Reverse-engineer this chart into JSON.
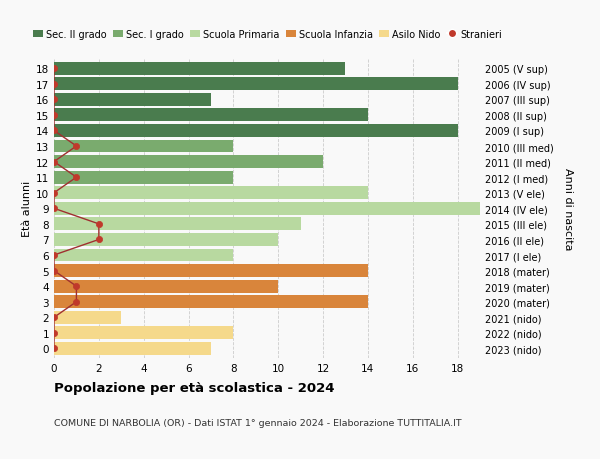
{
  "ages": [
    18,
    17,
    16,
    15,
    14,
    13,
    12,
    11,
    10,
    9,
    8,
    7,
    6,
    5,
    4,
    3,
    2,
    1,
    0
  ],
  "years": [
    "2005 (V sup)",
    "2006 (IV sup)",
    "2007 (III sup)",
    "2008 (II sup)",
    "2009 (I sup)",
    "2010 (III med)",
    "2011 (II med)",
    "2012 (I med)",
    "2013 (V ele)",
    "2014 (IV ele)",
    "2015 (III ele)",
    "2016 (II ele)",
    "2017 (I ele)",
    "2018 (mater)",
    "2019 (mater)",
    "2020 (mater)",
    "2021 (nido)",
    "2022 (nido)",
    "2023 (nido)"
  ],
  "bar_values": [
    13,
    18,
    7,
    14,
    18,
    8,
    12,
    8,
    14,
    19,
    11,
    10,
    8,
    14,
    10,
    14,
    3,
    8,
    7
  ],
  "bar_colors": [
    "#4a7c4e",
    "#4a7c4e",
    "#4a7c4e",
    "#4a7c4e",
    "#4a7c4e",
    "#7aab6e",
    "#7aab6e",
    "#7aab6e",
    "#b8d9a0",
    "#b8d9a0",
    "#b8d9a0",
    "#b8d9a0",
    "#b8d9a0",
    "#d9853b",
    "#d9853b",
    "#d9853b",
    "#f5d98b",
    "#f5d98b",
    "#f5d98b"
  ],
  "stranieri_values": [
    0,
    0,
    0,
    0,
    0,
    1,
    0,
    1,
    0,
    0,
    2,
    2,
    0,
    0,
    1,
    1,
    0,
    0,
    0
  ],
  "title_main": "Popolazione per età scolastica - 2024",
  "title_sub": "COMUNE DI NARBOLIA (OR) - Dati ISTAT 1° gennaio 2024 - Elaborazione TUTTITALIA.IT",
  "ylabel_left": "Età alunni",
  "ylabel_right": "Anni di nascita",
  "xlim": [
    0,
    19
  ],
  "xticks": [
    0,
    2,
    4,
    6,
    8,
    10,
    12,
    14,
    16,
    18
  ],
  "legend_labels": [
    "Sec. II grado",
    "Sec. I grado",
    "Scuola Primaria",
    "Scuola Infanzia",
    "Asilo Nido",
    "Stranieri"
  ],
  "legend_colors": [
    "#4a7c4e",
    "#7aab6e",
    "#b8d9a0",
    "#d9853b",
    "#f5d98b",
    "#c0392b"
  ],
  "bg_color": "#f9f9f9",
  "grid_color": "#cccccc",
  "bar_height": 0.82
}
